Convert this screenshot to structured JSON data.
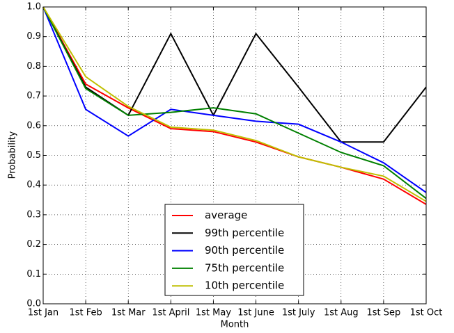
{
  "chart_data": {
    "type": "line",
    "x_label": "Month",
    "y_label": "Probability",
    "categories": [
      "1st Jan",
      "1st Feb",
      "1st Mar",
      "1st April",
      "1st May",
      "1st June",
      "1st July",
      "1st Aug",
      "1st Sep",
      "1st Oct"
    ],
    "series": [
      {
        "name": "average",
        "color": "#ff0000",
        "values": [
          1.0,
          0.74,
          0.66,
          0.59,
          0.58,
          0.545,
          0.495,
          0.46,
          0.42,
          0.335
        ]
      },
      {
        "name": "99th percentile",
        "color": "#000000",
        "values": [
          1.0,
          0.73,
          0.635,
          0.91,
          0.635,
          0.91,
          0.73,
          0.545,
          0.545,
          0.73
        ]
      },
      {
        "name": "90th percentile",
        "color": "#0000ff",
        "values": [
          1.0,
          0.655,
          0.565,
          0.655,
          0.635,
          0.615,
          0.605,
          0.545,
          0.475,
          0.375
        ]
      },
      {
        "name": "75th percentile",
        "color": "#008000",
        "values": [
          1.0,
          0.725,
          0.635,
          0.645,
          0.66,
          0.64,
          0.575,
          0.51,
          0.465,
          0.355
        ]
      },
      {
        "name": "10th percentile",
        "color": "#bfbf00",
        "values": [
          1.0,
          0.765,
          0.665,
          0.595,
          0.585,
          0.55,
          0.495,
          0.46,
          0.43,
          0.345
        ]
      }
    ],
    "ylim": [
      0,
      1
    ],
    "yticks": [
      {
        "value": 0,
        "label": "0.0"
      },
      {
        "value": 0.1,
        "label": "0.1"
      },
      {
        "value": 0.2,
        "label": "0.2"
      },
      {
        "value": 0.3,
        "label": "0.3"
      },
      {
        "value": 0.4,
        "label": "0.4"
      },
      {
        "value": 0.5,
        "label": "0.5"
      },
      {
        "value": 0.6,
        "label": "0.6"
      },
      {
        "value": 0.7,
        "label": "0.7"
      },
      {
        "value": 0.8,
        "label": "0.8"
      },
      {
        "value": 0.9,
        "label": "0.9"
      },
      {
        "value": 1,
        "label": "1.0"
      }
    ],
    "grid": true,
    "legend_position": "lower center"
  }
}
